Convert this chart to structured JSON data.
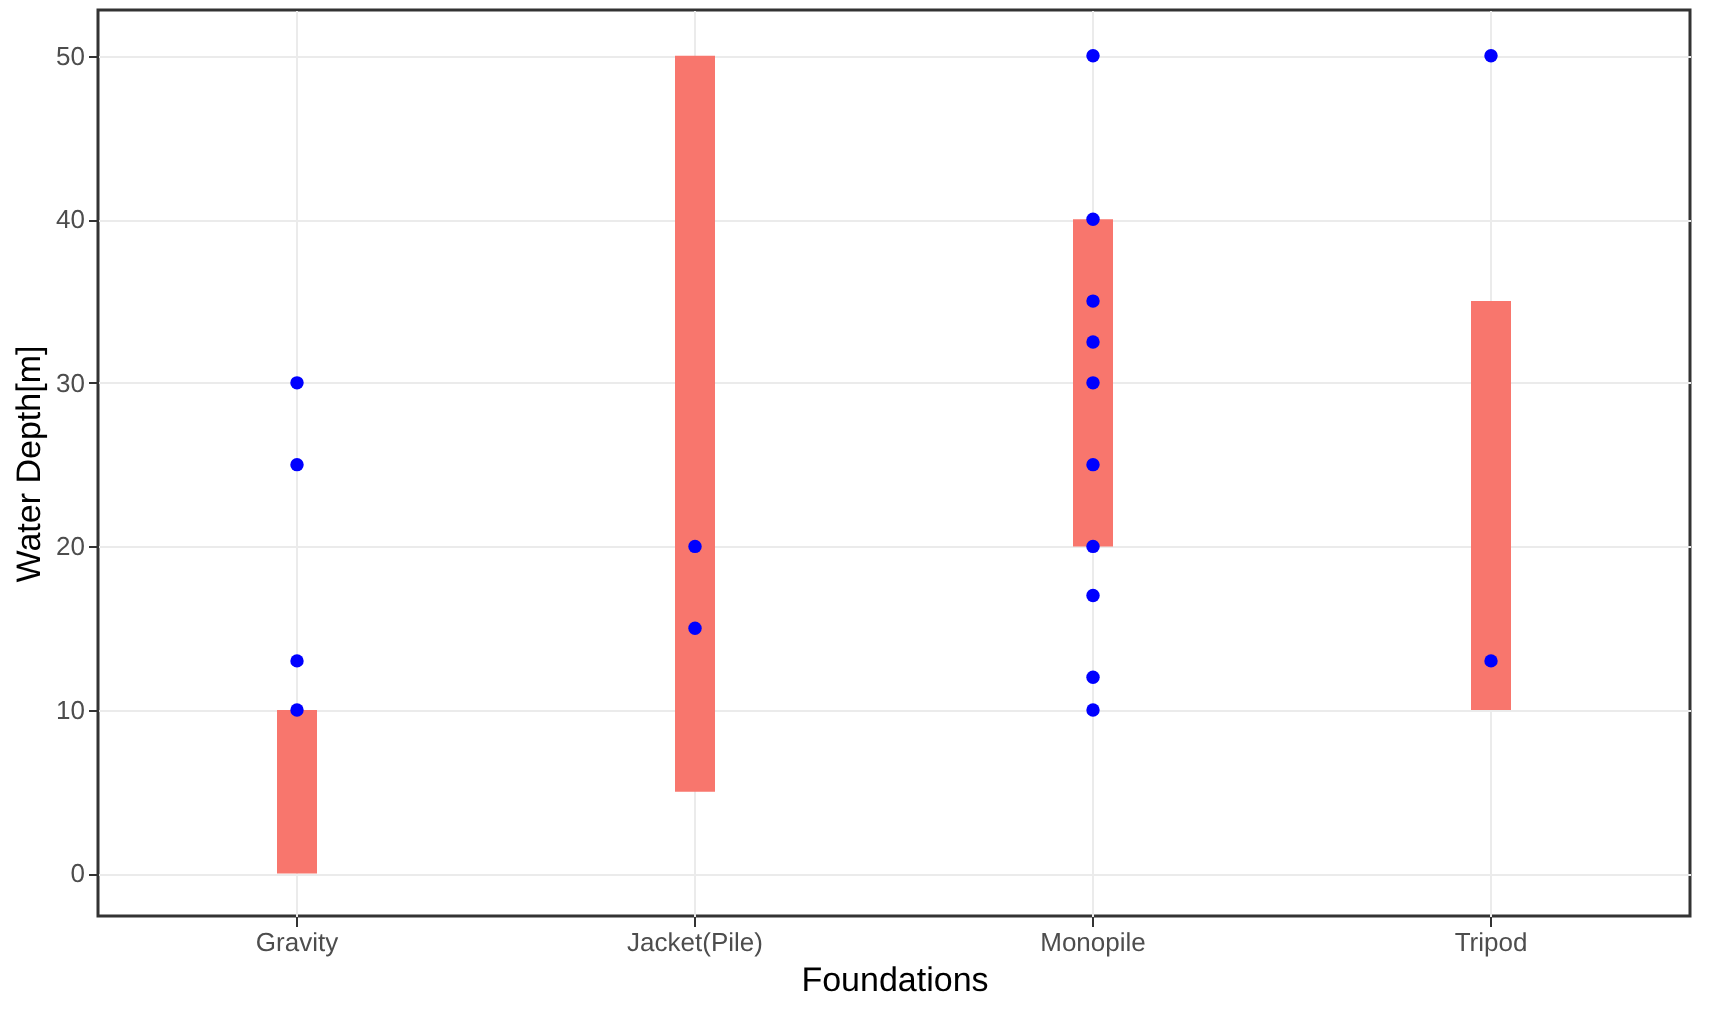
{
  "chart_data": {
    "type": "bar",
    "categories": [
      "Gravity",
      "Jacket(Pile)",
      "Monopile",
      "Tripod"
    ],
    "base": [
      0,
      5,
      20,
      10
    ],
    "values": [
      10,
      45,
      20,
      25
    ],
    "color": "#f8766d",
    "xlabel": "Foundations",
    "ylabel": "Water Depth[m]",
    "ylim": [
      -2.6,
      52.8
    ],
    "yticks": [
      0,
      10,
      20,
      30,
      40,
      50
    ],
    "grid": true,
    "series": [
      {
        "type": "scatter",
        "color": "#0000ff",
        "x": [
          "Gravity",
          "Gravity",
          "Gravity",
          "Gravity",
          "Jacket(Pile)",
          "Jacket(Pile)",
          "Monopile",
          "Monopile",
          "Monopile",
          "Monopile",
          "Monopile",
          "Monopile",
          "Monopile",
          "Monopile",
          "Monopile",
          "Monopile",
          "Tripod",
          "Tripod"
        ],
        "values": [
          30,
          25,
          13,
          10,
          20,
          15,
          50,
          40,
          35,
          32.5,
          30,
          25,
          20,
          17,
          12,
          10,
          50,
          13
        ]
      }
    ]
  }
}
